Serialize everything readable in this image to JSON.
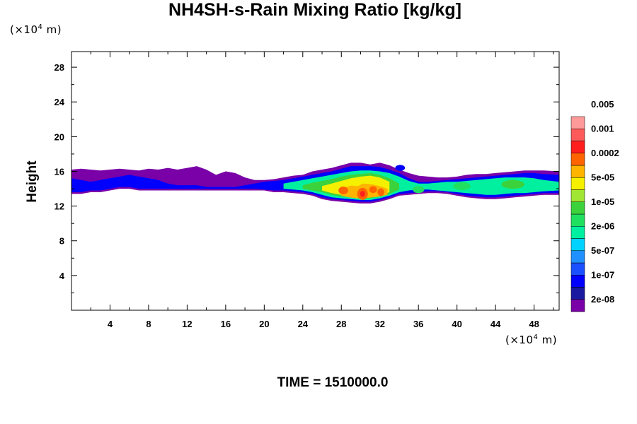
{
  "chart_data": {
    "type": "heatmap",
    "title": "NH4SH-s-Rain Mixing Ratio [kg/kg]",
    "ylabel": "Height",
    "x_unit": {
      "prefix": "(×10",
      "exp": "4",
      "suffix": " m)"
    },
    "y_unit": {
      "prefix": "(×10",
      "exp": "4",
      "suffix": " m)"
    },
    "xlim": [
      0,
      50.6
    ],
    "ylim": [
      0,
      29.8
    ],
    "x_ticks": [
      4,
      8,
      12,
      16,
      20,
      24,
      28,
      32,
      36,
      40,
      44,
      48
    ],
    "y_ticks": [
      4,
      8,
      12,
      16,
      20,
      24,
      28
    ],
    "footer": "TIME = 1510000.0",
    "colorbar": {
      "colors": [
        "#7a00a8",
        "#1a1aa0",
        "#0000ff",
        "#1a50ff",
        "#1e90ff",
        "#00d2ff",
        "#00f0a0",
        "#20e060",
        "#3cd23c",
        "#a0e632",
        "#f5f000",
        "#ffb400",
        "#ff6400",
        "#ff1e1e",
        "#ff5a5a",
        "#ff9a9a"
      ],
      "labels": [
        "2e-08",
        "1e-07",
        "5e-07",
        "2e-06",
        "1e-05",
        "5e-05",
        "0.0002",
        "0.001",
        "0.005"
      ]
    },
    "field_layers": [
      {
        "level": 0,
        "color": "#7a00a8",
        "x": [
          0,
          1,
          2,
          3,
          4,
          5,
          6,
          7,
          8,
          9,
          10,
          11,
          12,
          13,
          14,
          15,
          16,
          17,
          18,
          19,
          20,
          21,
          22,
          23,
          24,
          25,
          26,
          27,
          28,
          29,
          30,
          31,
          32,
          33,
          34,
          35,
          36,
          37,
          38,
          39,
          40,
          41,
          42,
          43,
          44,
          45,
          46,
          47,
          48,
          49,
          50.6
        ],
        "top": [
          16.2,
          16.3,
          16.2,
          16.1,
          16.2,
          16.3,
          16.2,
          16.1,
          16.3,
          16.2,
          16.4,
          16.2,
          16.4,
          16.6,
          16.2,
          15.6,
          16.0,
          15.8,
          15.3,
          15.0,
          15.0,
          15.1,
          15.3,
          15.5,
          15.6,
          16.0,
          16.2,
          16.4,
          16.7,
          17.0,
          17.0,
          16.8,
          17.0,
          16.7,
          16.2,
          15.8,
          15.5,
          15.4,
          15.3,
          15.3,
          15.4,
          15.6,
          15.7,
          15.7,
          15.8,
          15.9,
          16.0,
          16.1,
          16.1,
          16.1,
          16.0
        ],
        "bot": [
          13.4,
          13.4,
          13.6,
          13.6,
          13.8,
          14.0,
          14.0,
          13.8,
          13.8,
          13.8,
          13.8,
          13.8,
          13.8,
          13.8,
          13.8,
          13.8,
          13.8,
          13.8,
          13.8,
          13.8,
          13.8,
          13.6,
          13.6,
          13.5,
          13.4,
          13.2,
          12.8,
          12.6,
          12.5,
          12.4,
          12.3,
          12.3,
          12.5,
          12.8,
          13.2,
          13.3,
          13.4,
          13.5,
          13.5,
          13.4,
          13.2,
          13.0,
          12.9,
          12.8,
          12.8,
          12.9,
          13.0,
          13.1,
          13.2,
          13.3,
          13.3
        ]
      },
      {
        "level": 2,
        "color": "#0000ff",
        "x": [
          0,
          1,
          2,
          3,
          4,
          5,
          6,
          7,
          8,
          9,
          10,
          11,
          12,
          13,
          14,
          15,
          16,
          17,
          18,
          19,
          20,
          21,
          22,
          23,
          24,
          25,
          26,
          27,
          28,
          29,
          30,
          31,
          32,
          33,
          34,
          35,
          36,
          37,
          38,
          39,
          40,
          41,
          42,
          43,
          44,
          45,
          46,
          47,
          48,
          49,
          50.6
        ],
        "top": [
          15.2,
          15.0,
          14.8,
          15.0,
          15.2,
          15.4,
          15.6,
          15.4,
          15.2,
          15.0,
          14.6,
          14.4,
          14.4,
          14.4,
          14.2,
          14.2,
          14.2,
          14.2,
          14.4,
          14.6,
          14.8,
          14.9,
          15.0,
          15.2,
          15.4,
          15.6,
          15.8,
          16.0,
          16.3,
          16.6,
          16.6,
          16.6,
          16.5,
          16.2,
          15.8,
          15.2,
          14.8,
          14.8,
          14.9,
          15.0,
          15.1,
          15.2,
          15.3,
          15.4,
          15.5,
          15.6,
          15.7,
          15.8,
          15.8,
          15.7,
          15.6
        ],
        "bot": [
          13.6,
          13.6,
          13.8,
          13.8,
          14.0,
          14.2,
          14.2,
          14.0,
          14.0,
          14.0,
          14.0,
          14.0,
          14.0,
          14.0,
          14.0,
          14.0,
          14.0,
          14.0,
          14.0,
          14.0,
          13.9,
          13.8,
          13.8,
          13.7,
          13.6,
          13.4,
          13.0,
          12.8,
          12.7,
          12.6,
          12.5,
          12.5,
          12.7,
          13.0,
          13.4,
          13.5,
          13.6,
          13.7,
          13.7,
          13.6,
          13.4,
          13.2,
          13.1,
          13.0,
          13.0,
          13.1,
          13.2,
          13.3,
          13.4,
          13.5,
          13.5
        ]
      },
      {
        "level": 6,
        "color": "#00f0a0",
        "x": [
          22,
          23,
          24,
          25,
          26,
          27,
          28,
          29,
          30,
          31,
          32,
          33,
          34,
          35,
          36,
          37,
          38,
          39,
          40,
          41,
          42,
          43,
          44,
          45,
          46,
          47,
          48,
          49,
          50.6
        ],
        "top": [
          14.6,
          14.8,
          15.0,
          15.2,
          15.4,
          15.6,
          15.8,
          16.0,
          16.1,
          16.1,
          16.0,
          15.8,
          15.4,
          14.9,
          14.6,
          14.6,
          14.7,
          14.8,
          14.8,
          14.9,
          15.0,
          15.1,
          15.2,
          15.3,
          15.3,
          15.3,
          15.2,
          15.0,
          14.8
        ],
        "bot": [
          14.0,
          13.9,
          13.8,
          13.6,
          13.3,
          13.0,
          12.9,
          12.8,
          12.7,
          12.7,
          12.9,
          13.2,
          13.6,
          13.8,
          13.9,
          13.9,
          13.8,
          13.7,
          13.6,
          13.5,
          13.4,
          13.3,
          13.3,
          13.4,
          13.5,
          13.5,
          13.6,
          13.7,
          13.8
        ]
      },
      {
        "level": 8,
        "color": "#3cd23c",
        "x": [
          24,
          25,
          26,
          27,
          28,
          29,
          30,
          31,
          32,
          33,
          34
        ],
        "top": [
          14.4,
          14.7,
          14.9,
          15.1,
          15.4,
          15.6,
          15.7,
          15.8,
          15.6,
          15.2,
          14.6
        ],
        "bot": [
          14.0,
          13.8,
          13.6,
          13.3,
          13.1,
          13.0,
          12.9,
          12.9,
          13.1,
          13.4,
          13.9
        ]
      },
      {
        "level": 10,
        "color": "#f5f000",
        "x": [
          26,
          27,
          28,
          29,
          30,
          31,
          32,
          33
        ],
        "top": [
          14.3,
          14.6,
          14.9,
          15.2,
          15.4,
          15.5,
          15.3,
          14.8
        ],
        "bot": [
          13.8,
          13.5,
          13.3,
          13.2,
          13.1,
          13.1,
          13.2,
          13.6
        ]
      },
      {
        "level": 11,
        "color": "#ffb400",
        "x": [
          28,
          28.8,
          29.6,
          30.4,
          31.2,
          32,
          32.8
        ],
        "top": [
          14.0,
          14.3,
          14.5,
          14.6,
          14.5,
          14.3,
          14.0
        ],
        "bot": [
          13.2,
          13.0,
          12.9,
          12.9,
          13.0,
          13.1,
          13.3
        ]
      }
    ],
    "blobs": [
      {
        "x": 28.2,
        "y": 13.8,
        "rx": 0.5,
        "ry": 0.45,
        "color": "#ff6400"
      },
      {
        "x": 30.2,
        "y": 13.4,
        "rx": 0.55,
        "ry": 0.7,
        "color": "#ff6400"
      },
      {
        "x": 30.2,
        "y": 13.4,
        "rx": 0.25,
        "ry": 0.35,
        "color": "#ff1e1e"
      },
      {
        "x": 31.3,
        "y": 13.9,
        "rx": 0.4,
        "ry": 0.4,
        "color": "#ff6400"
      },
      {
        "x": 32.1,
        "y": 13.6,
        "rx": 0.35,
        "ry": 0.45,
        "color": "#ff6400"
      },
      {
        "x": 29.5,
        "y": 14.6,
        "rx": 0.6,
        "ry": 0.3,
        "color": "#f5f000"
      },
      {
        "x": 34.1,
        "y": 16.4,
        "rx": 0.5,
        "ry": 0.35,
        "color": "#0000ff"
      },
      {
        "x": 40.5,
        "y": 14.3,
        "rx": 0.9,
        "ry": 0.45,
        "color": "#20e060"
      },
      {
        "x": 45.8,
        "y": 14.5,
        "rx": 1.2,
        "ry": 0.5,
        "color": "#3cd23c"
      },
      {
        "x": 36.0,
        "y": 13.9,
        "rx": 0.6,
        "ry": 0.4,
        "color": "#20e060"
      }
    ]
  }
}
